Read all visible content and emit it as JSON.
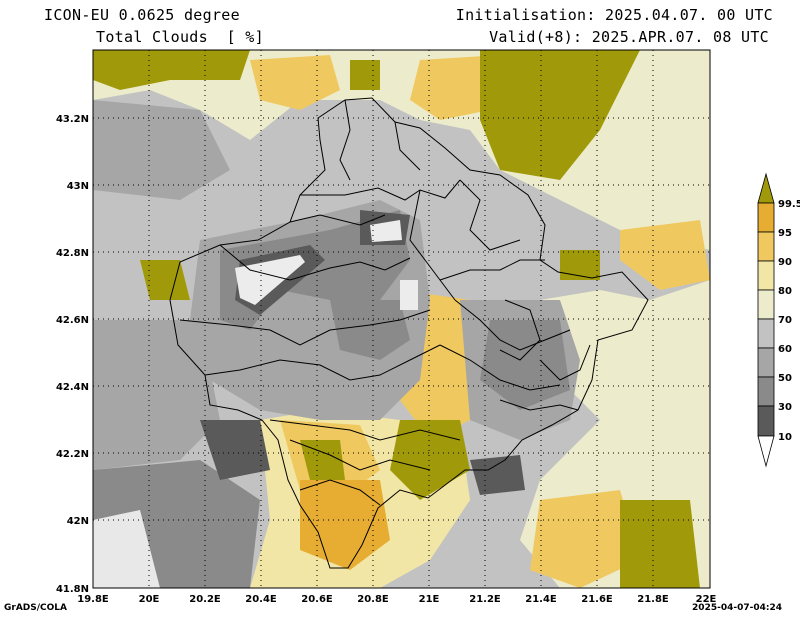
{
  "header": {
    "model": "ICON-EU 0.0625 degree",
    "field": "Total Clouds  [ %]",
    "initialisation": "Initialisation: 2025.04.07. 00 UTC",
    "valid": "Valid(+8): 2025.APR.07. 08 UTC"
  },
  "footer": {
    "software": "GrADS/COLA",
    "timestamp": "2025-04-07-04:24"
  },
  "map": {
    "lon_labels": [
      "19.8E",
      "20E",
      "20.2E",
      "20.4E",
      "20.6E",
      "20.8E",
      "21E",
      "21.2E",
      "21.4E",
      "21.6E",
      "21.8E",
      "22E"
    ],
    "lat_labels": [
      "42N",
      "42.2N",
      "42.4N",
      "42.6N",
      "42.8N",
      "43N",
      "43.2N"
    ],
    "lat_bottom_label": "41.8N"
  },
  "legend": {
    "levels": [
      "10",
      "30",
      "50",
      "60",
      "70",
      "80",
      "90",
      "95",
      "99.5"
    ],
    "colors": {
      "below_10": "#ffffff",
      "10_30": "#5a5a5a",
      "30_50": "#8a8a8a",
      "50_60": "#a6a6a6",
      "60_70": "#c2c2c2",
      "70_80": "#ececcc",
      "80_90": "#f2e6a6",
      "90_95": "#f0c860",
      "95_99_5": "#e6ad32",
      "above_99_5": "#a09a0a"
    }
  }
}
